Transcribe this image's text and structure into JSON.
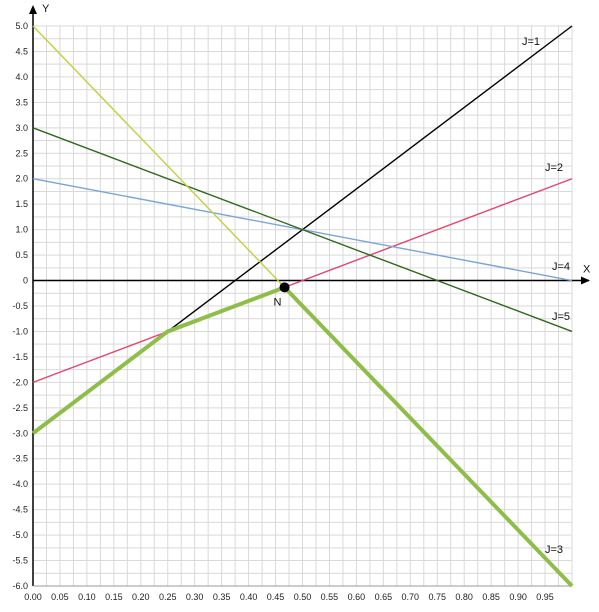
{
  "chart_data": {
    "type": "line",
    "xlabel": "X",
    "ylabel": "Y",
    "xlim": [
      0,
      1.0
    ],
    "ylim": [
      -6.0,
      5.0
    ],
    "x_ticks": [
      "0.00",
      "0.05",
      "0.10",
      "0.15",
      "0.20",
      "0.25",
      "0.30",
      "0.35",
      "0.40",
      "0.45",
      "0.50",
      "0.55",
      "0.60",
      "0.65",
      "0.70",
      "0.75",
      "0.80",
      "0.85",
      "0.90",
      "0.95"
    ],
    "y_ticks": [
      "5.0",
      "4.5",
      "4.0",
      "3.5",
      "3.0",
      "2.5",
      "2.0",
      "1.5",
      "1.0",
      "0.5",
      "0",
      "-0.5",
      "-1.0",
      "-1.5",
      "-2.0",
      "-2.5",
      "-3.0",
      "-3.5",
      "-4.0",
      "-4.5",
      "-5.0",
      "-5.5",
      "-6.0"
    ],
    "grid": true,
    "series": [
      {
        "name": "J=1",
        "color": "#000000",
        "x": [
          0.25,
          1.0
        ],
        "y": [
          -1.0,
          5.0
        ]
      },
      {
        "name": "J=2",
        "color": "#e0476e",
        "x": [
          0.0,
          1.0
        ],
        "y": [
          -2.0,
          2.0
        ]
      },
      {
        "name": "J=3",
        "color": "#8fbd4a",
        "x": [
          0.0,
          0.25,
          0.4667,
          1.0
        ],
        "y": [
          -3.0,
          -1.0,
          -0.1333,
          -6.0
        ]
      },
      {
        "name": "J=4",
        "color": "#7ba4d4",
        "x": [
          0.0,
          1.0
        ],
        "y": [
          2.0,
          0.0
        ]
      },
      {
        "name": "J=5",
        "color": "#336622",
        "x": [
          0.0,
          1.0
        ],
        "y": [
          3.0,
          -1.0
        ]
      },
      {
        "name": "",
        "color": "#c6cf3c",
        "x": [
          0.0,
          0.4667
        ],
        "y": [
          5.0,
          -0.1333
        ]
      }
    ],
    "annotations": [
      {
        "label": "N",
        "x": 0.4667,
        "y": -0.1333
      }
    ]
  }
}
